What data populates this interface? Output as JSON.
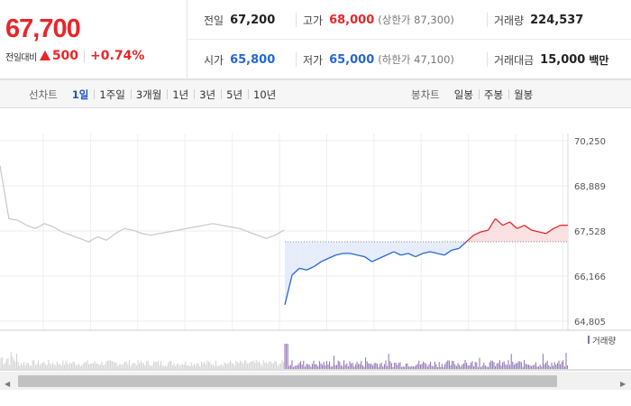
{
  "quote": {
    "price": "67,700",
    "change_label": "전일대비",
    "change_amount": "500",
    "change_rate": "+0.74%",
    "prev_close_label": "전일",
    "prev_close": "67,200",
    "high_label": "고가",
    "high": "68,000",
    "upper_limit": "(상한가 87,300)",
    "volume_label": "거래량",
    "volume": "224,537",
    "open_label": "시가",
    "open": "65,800",
    "low_label": "저가",
    "low": "65,000",
    "lower_limit": "(하한가 47,100)",
    "amount_label": "거래대금",
    "amount": "15,000",
    "amount_unit": "백만",
    "up_color": "#e8262a",
    "down_color": "#2667d6"
  },
  "tabs": {
    "line_label": "선차트",
    "line_items": [
      "1일",
      "1주일",
      "3개월",
      "1년",
      "3년",
      "5년",
      "10년"
    ],
    "line_active": "1일",
    "candle_label": "봉차트",
    "candle_items": [
      "일봉",
      "주봉",
      "월봉"
    ]
  },
  "chart_data": {
    "type": "line",
    "x_unit": "intraday",
    "y_ticks": [
      "70,250",
      "68,889",
      "67,528",
      "66,166",
      "64,805"
    ],
    "y_tick_values": [
      70250,
      68889,
      67528,
      66166,
      64805
    ],
    "ylim": [
      64805,
      70250
    ],
    "baseline": 67200,
    "prev_day_series": [
      69500,
      67900,
      67850,
      67700,
      67600,
      67750,
      67650,
      67500,
      67400,
      67300,
      67200,
      67350,
      67250,
      67450,
      67600,
      67550,
      67450,
      67400,
      67450,
      67500,
      67550,
      67600,
      67650,
      67700,
      67750,
      67700,
      67650,
      67600,
      67500,
      67400,
      67300,
      67400,
      67550
    ],
    "today_series": [
      65300,
      66200,
      66400,
      66350,
      66450,
      66600,
      66700,
      66800,
      66850,
      66850,
      66800,
      66750,
      66600,
      66700,
      66800,
      66900,
      66800,
      66850,
      66750,
      66850,
      66900,
      66850,
      66800,
      66950,
      67000,
      67200,
      67400,
      67500,
      67550,
      67900,
      67700,
      67800,
      67600,
      67700,
      67550,
      67500,
      67450,
      67600,
      67700,
      67700
    ],
    "above_baseline_color": "#e8262a",
    "below_baseline_color": "#2667d6",
    "prev_day_color": "#c8c8c8",
    "volume_legend": "거래량",
    "grid": "vertical and horizontal light lines"
  },
  "scrollbar": {
    "arrow_left": "◀",
    "arrow_right": "▶"
  }
}
